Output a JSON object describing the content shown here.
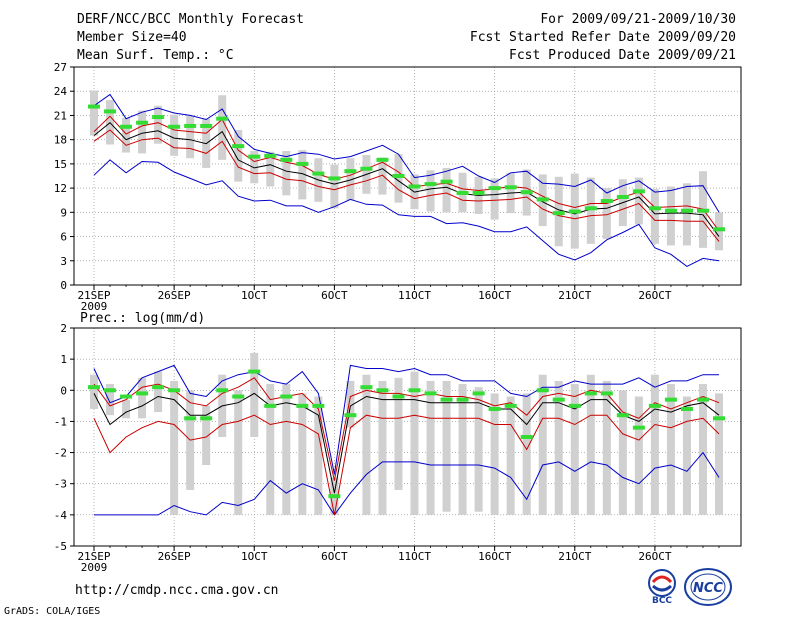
{
  "header": {
    "title": "DERF/NCC/BCC Monthly Forecast",
    "member_size": "Member Size=40",
    "variable": "Mean Surf. Temp.: °C",
    "forecast_period": "For 2009/09/21-2009/10/30",
    "start_date": "Fcst Started Refer Date 2009/09/20",
    "produced_date": "Fcst Produced Date 2009/09/21"
  },
  "footer": {
    "url": "http://cmdp.ncc.cma.gov.cn",
    "credit": "GrADS: COLA/IGES",
    "logo_left_text": "BCC",
    "logo_right_text": "NCC"
  },
  "colors": {
    "envelope": "#0000cc",
    "spread": "#cc0000",
    "mean": "#000000",
    "observed_marker": "#33dd33",
    "box": "#d0d0d0",
    "grid": "#888888"
  },
  "chart_data": [
    {
      "id": "temperature",
      "type": "line",
      "title": "Mean Surf. Temp.: °C",
      "xlabel": "",
      "ylabel": "",
      "x_start": "21SEP 2009",
      "ndays": 40,
      "ylim": [
        0,
        27
      ],
      "yticks": [
        0,
        3,
        6,
        9,
        12,
        15,
        18,
        21,
        24,
        27
      ],
      "xticks": [
        {
          "day": 0,
          "label": "21SEP",
          "sub": "2009"
        },
        {
          "day": 5,
          "label": "26SEP",
          "sub": ""
        },
        {
          "day": 10,
          "label": "1OCT",
          "sub": ""
        },
        {
          "day": 15,
          "label": "6OCT",
          "sub": ""
        },
        {
          "day": 20,
          "label": "11OCT",
          "sub": ""
        },
        {
          "day": 25,
          "label": "16OCT",
          "sub": ""
        },
        {
          "day": 30,
          "label": "21OCT",
          "sub": ""
        },
        {
          "day": 35,
          "label": "26OCT",
          "sub": ""
        }
      ],
      "series": [
        {
          "name": "max",
          "values": [
            22.2,
            23.6,
            20.6,
            21.4,
            21.9,
            21.3,
            21.0,
            20.5,
            21.8,
            18.4,
            16.8,
            16.3,
            15.9,
            16.4,
            16.2,
            15.6,
            15.9,
            16.6,
            17.3,
            16.2,
            13.3,
            13.6,
            14.1,
            14.7,
            13.5,
            12.7,
            13.9,
            14.1,
            12.6,
            12.5,
            12.2,
            13.0,
            11.4,
            12.3,
            12.9,
            11.5,
            11.7,
            12.2,
            12.3,
            9.0
          ]
        },
        {
          "name": "upper",
          "values": [
            19.0,
            20.9,
            18.7,
            19.7,
            20.1,
            19.2,
            19.0,
            18.8,
            20.5,
            16.7,
            15.3,
            15.8,
            15.2,
            14.8,
            13.7,
            13.1,
            13.6,
            14.4,
            15.2,
            14.0,
            12.2,
            12.4,
            12.6,
            11.9,
            11.7,
            11.9,
            12.2,
            12.0,
            11.0,
            10.1,
            9.6,
            10.1,
            10.1,
            10.9,
            11.5,
            9.6,
            9.7,
            9.8,
            9.4,
            6.7
          ]
        },
        {
          "name": "mean",
          "values": [
            18.5,
            20.1,
            18.0,
            18.8,
            19.1,
            18.2,
            18.0,
            17.5,
            19.0,
            15.5,
            14.5,
            14.9,
            14.1,
            13.8,
            13.0,
            12.5,
            13.0,
            13.7,
            14.4,
            12.9,
            11.5,
            11.9,
            12.1,
            11.3,
            11.1,
            11.2,
            11.4,
            11.5,
            10.3,
            9.3,
            8.8,
            9.4,
            9.5,
            10.2,
            10.9,
            8.8,
            8.9,
            8.9,
            8.7,
            6.0
          ]
        },
        {
          "name": "lower",
          "values": [
            17.8,
            19.2,
            17.3,
            18.0,
            18.2,
            17.0,
            16.9,
            16.3,
            17.8,
            14.6,
            13.8,
            13.9,
            13.1,
            12.9,
            12.2,
            11.8,
            12.4,
            12.9,
            13.6,
            11.8,
            10.7,
            11.1,
            11.4,
            10.5,
            10.4,
            10.5,
            10.6,
            10.9,
            9.4,
            8.6,
            8.2,
            8.6,
            8.7,
            9.4,
            10.1,
            8.0,
            8.0,
            7.9,
            7.9,
            5.4
          ]
        },
        {
          "name": "min",
          "values": [
            13.6,
            15.5,
            13.9,
            15.3,
            15.2,
            14.0,
            13.2,
            12.4,
            12.9,
            11.0,
            10.4,
            10.5,
            9.8,
            9.8,
            9.0,
            9.7,
            10.6,
            10.0,
            9.9,
            8.7,
            8.5,
            8.5,
            7.6,
            7.7,
            7.3,
            6.6,
            6.6,
            7.2,
            5.5,
            3.8,
            3.1,
            4.0,
            5.6,
            6.5,
            7.5,
            4.6,
            3.8,
            2.3,
            3.3,
            3.0
          ]
        },
        {
          "name": "observed",
          "values": [
            22.1,
            21.5,
            19.6,
            20.1,
            20.8,
            19.6,
            19.7,
            19.7,
            20.6,
            17.2,
            15.9,
            16.0,
            15.5,
            15.0,
            13.8,
            13.2,
            14.1,
            14.4,
            15.5,
            13.5,
            12.2,
            12.5,
            12.8,
            11.4,
            11.4,
            12.0,
            12.1,
            11.5,
            10.6,
            8.9,
            9.1,
            9.5,
            10.4,
            10.9,
            11.6,
            9.5,
            9.2,
            9.2,
            9.2,
            6.9
          ]
        },
        {
          "name": "box_top",
          "values": [
            24.1,
            22.9,
            20.7,
            21.6,
            22.2,
            21.1,
            21.0,
            20.6,
            23.5,
            19.2,
            16.6,
            16.5,
            16.6,
            16.7,
            15.7,
            14.9,
            15.7,
            16.1,
            15.8,
            16.2,
            13.7,
            14.2,
            14.5,
            13.9,
            13.4,
            13.2,
            13.9,
            14.3,
            13.7,
            13.4,
            13.8,
            13.3,
            12.0,
            13.1,
            13.3,
            11.9,
            12.2,
            12.6,
            14.1,
            9.0
          ]
        },
        {
          "name": "box_bottom",
          "values": [
            18.5,
            17.4,
            16.4,
            16.3,
            17.5,
            16.0,
            15.7,
            14.5,
            15.5,
            12.8,
            12.6,
            12.2,
            11.1,
            10.6,
            10.3,
            9.5,
            10.5,
            11.3,
            11.2,
            10.2,
            9.4,
            9.1,
            9.0,
            9.0,
            8.8,
            8.1,
            8.9,
            8.6,
            7.3,
            4.8,
            4.5,
            5.1,
            5.7,
            7.3,
            7.5,
            5.1,
            4.9,
            4.9,
            4.6,
            4.3
          ]
        }
      ]
    },
    {
      "id": "precipitation",
      "type": "line",
      "title": "Prec.: log(mm/d)",
      "xlabel": "",
      "ylabel": "",
      "x_start": "21SEP 2009",
      "ndays": 40,
      "ylim": [
        -5,
        2
      ],
      "yticks": [
        -5,
        -4,
        -3,
        -2,
        -1,
        0,
        1,
        2
      ],
      "xticks": [
        {
          "day": 0,
          "label": "21SEP",
          "sub": "2009"
        },
        {
          "day": 5,
          "label": "26SEP",
          "sub": ""
        },
        {
          "day": 10,
          "label": "1OCT",
          "sub": ""
        },
        {
          "day": 15,
          "label": "6OCT",
          "sub": ""
        },
        {
          "day": 20,
          "label": "11OCT",
          "sub": ""
        },
        {
          "day": 25,
          "label": "16OCT",
          "sub": ""
        },
        {
          "day": 30,
          "label": "21OCT",
          "sub": ""
        },
        {
          "day": 35,
          "label": "26OCT",
          "sub": ""
        }
      ],
      "series": [
        {
          "name": "max",
          "values": [
            0.7,
            -0.4,
            -0.2,
            0.4,
            0.6,
            0.8,
            -0.1,
            -0.2,
            0.3,
            0.5,
            0.6,
            0.3,
            0.2,
            0.6,
            -0.1,
            -2.7,
            0.8,
            0.7,
            0.7,
            0.6,
            0.7,
            0.5,
            0.5,
            0.3,
            0.3,
            0.3,
            -0.1,
            -0.2,
            0.1,
            0.1,
            0.3,
            0.2,
            0.2,
            0.2,
            0.4,
            0.1,
            0.3,
            0.3,
            0.5,
            0.5
          ]
        },
        {
          "name": "upper",
          "values": [
            0.2,
            -0.5,
            -0.3,
            0.1,
            0.2,
            0.0,
            -0.4,
            -0.5,
            -0.1,
            0.1,
            0.4,
            -0.3,
            -0.2,
            -0.1,
            -0.6,
            -2.9,
            -0.2,
            0.0,
            -0.1,
            -0.1,
            -0.2,
            -0.1,
            -0.2,
            -0.2,
            -0.3,
            -0.5,
            -0.4,
            -0.8,
            -0.2,
            -0.1,
            -0.2,
            0.0,
            -0.1,
            -0.7,
            -0.9,
            -0.4,
            -0.6,
            -0.4,
            -0.2,
            -0.4
          ]
        },
        {
          "name": "mean",
          "values": [
            -0.1,
            -1.1,
            -0.7,
            -0.5,
            -0.2,
            -0.3,
            -0.8,
            -0.8,
            -0.5,
            -0.4,
            -0.1,
            -0.5,
            -0.4,
            -0.5,
            -0.8,
            -3.3,
            -0.5,
            -0.2,
            -0.3,
            -0.3,
            -0.3,
            -0.4,
            -0.4,
            -0.4,
            -0.4,
            -0.6,
            -0.6,
            -1.1,
            -0.4,
            -0.4,
            -0.6,
            -0.3,
            -0.3,
            -0.8,
            -1.0,
            -0.6,
            -0.7,
            -0.5,
            -0.4,
            -0.8
          ]
        },
        {
          "name": "lower",
          "values": [
            -0.9,
            -2.0,
            -1.5,
            -1.2,
            -1.0,
            -1.1,
            -1.6,
            -1.5,
            -1.1,
            -1.0,
            -0.8,
            -1.1,
            -1.0,
            -1.1,
            -1.4,
            -4.0,
            -1.2,
            -0.8,
            -0.9,
            -0.9,
            -0.8,
            -0.9,
            -0.9,
            -0.9,
            -0.9,
            -1.1,
            -1.1,
            -1.9,
            -0.9,
            -0.9,
            -1.1,
            -0.8,
            -0.8,
            -1.4,
            -1.6,
            -1.1,
            -1.2,
            -1.0,
            -0.9,
            -1.4
          ]
        },
        {
          "name": "min",
          "values": [
            -4.0,
            -4.0,
            -4.0,
            -4.0,
            -4.0,
            -3.7,
            -3.9,
            -4.0,
            -3.6,
            -3.7,
            -3.5,
            -2.9,
            -3.3,
            -3.0,
            -3.2,
            -4.0,
            -3.3,
            -2.7,
            -2.3,
            -2.3,
            -2.3,
            -2.4,
            -2.4,
            -2.4,
            -2.4,
            -2.5,
            -2.8,
            -3.5,
            -2.4,
            -2.3,
            -2.6,
            -2.3,
            -2.4,
            -2.8,
            -3.0,
            -2.5,
            -2.4,
            -2.6,
            -2.0,
            -2.8
          ]
        },
        {
          "name": "observed",
          "values": [
            0.1,
            0.0,
            -0.2,
            -0.1,
            0.1,
            0.0,
            -0.9,
            -0.9,
            0.0,
            -0.2,
            0.6,
            -0.5,
            -0.2,
            -0.5,
            -0.5,
            -3.4,
            -0.8,
            0.1,
            0.0,
            -0.2,
            0.0,
            -0.1,
            -0.3,
            -0.3,
            -0.1,
            -0.6,
            -0.5,
            -1.5,
            0.0,
            -0.3,
            -0.5,
            -0.1,
            -0.1,
            -0.8,
            -1.2,
            -0.5,
            -0.3,
            -0.6,
            -0.3,
            -0.9
          ]
        },
        {
          "name": "box_top",
          "values": [
            0.5,
            0.2,
            -0.3,
            0.4,
            0.6,
            0.3,
            0.0,
            -0.5,
            0.5,
            0.0,
            1.2,
            0.2,
            0.2,
            -0.1,
            -0.2,
            -2.8,
            0.3,
            0.5,
            0.3,
            0.4,
            0.6,
            0.3,
            0.3,
            0.2,
            0.1,
            -0.1,
            -0.2,
            -0.1,
            0.5,
            0.3,
            0.2,
            0.5,
            0.3,
            0.0,
            -0.2,
            0.5,
            0.2,
            -0.2,
            0.2,
            -0.1
          ]
        },
        {
          "name": "box_bottom",
          "values": [
            -0.6,
            -0.8,
            -0.9,
            -0.9,
            -0.7,
            -4.0,
            -3.2,
            -2.4,
            -1.5,
            -4.0,
            -1.5,
            -4.0,
            -4.0,
            -4.0,
            -4.0,
            -4.0,
            -1.2,
            -4.0,
            -4.0,
            -3.2,
            -4.0,
            -4.0,
            -3.9,
            -4.0,
            -3.9,
            -4.0,
            -4.0,
            -4.0,
            -4.0,
            -4.0,
            -4.0,
            -4.0,
            -4.0,
            -4.0,
            -4.0,
            -4.0,
            -4.0,
            -4.0,
            -4.0,
            -4.0
          ]
        }
      ]
    }
  ]
}
